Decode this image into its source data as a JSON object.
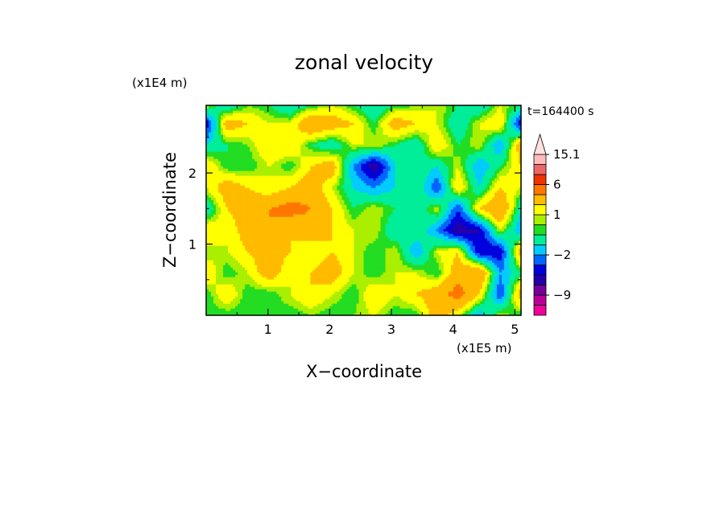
{
  "chart_data": {
    "type": "heatmap",
    "title": "zonal velocity",
    "xlabel": "X−coordinate",
    "ylabel": "Z−coordinate",
    "x_scale_label": "(x1E5 m)",
    "y_scale_label": "(x1E4 m)",
    "time_label": "t=164400 s",
    "xlim": [
      0,
      5.1
    ],
    "ylim": [
      0,
      2.95
    ],
    "x_ticks": [
      1,
      2,
      3,
      4,
      5
    ],
    "y_ticks": [
      1,
      2
    ],
    "colorbar": {
      "labels": [
        {
          "text": "15.1",
          "value": 15.1
        },
        {
          "text": "6",
          "value": 6
        },
        {
          "text": "1",
          "value": 1
        },
        {
          "text": "−2",
          "value": -2
        },
        {
          "text": "−9",
          "value": -9
        }
      ],
      "levels": [
        {
          "lo": null,
          "hi": -12,
          "color": "#ee0099"
        },
        {
          "lo": -12,
          "hi": -9,
          "color": "#bb0099"
        },
        {
          "lo": -9,
          "hi": -6,
          "color": "#770099"
        },
        {
          "lo": -6,
          "hi": -4,
          "color": "#2200aa"
        },
        {
          "lo": -4,
          "hi": -3,
          "color": "#0000dd"
        },
        {
          "lo": -3,
          "hi": -2,
          "color": "#0066ff"
        },
        {
          "lo": -2,
          "hi": -1,
          "color": "#00ccff"
        },
        {
          "lo": -1,
          "hi": 0,
          "color": "#00ee99"
        },
        {
          "lo": 0,
          "hi": 0.5,
          "color": "#22dd22"
        },
        {
          "lo": 0.5,
          "hi": 1,
          "color": "#aaee00"
        },
        {
          "lo": 1,
          "hi": 2,
          "color": "#ffff00"
        },
        {
          "lo": 2,
          "hi": 4,
          "color": "#ffbb00"
        },
        {
          "lo": 4,
          "hi": 6,
          "color": "#ff7700"
        },
        {
          "lo": 6,
          "hi": 8,
          "color": "#ee3300"
        },
        {
          "lo": 8,
          "hi": 12,
          "color": "#ee6666"
        },
        {
          "lo": 12,
          "hi": 15.1,
          "color": "#ffbbbb"
        },
        {
          "lo": 15.1,
          "hi": null,
          "color": "#ffe0e0"
        }
      ]
    },
    "field_grid": {
      "x_values": [
        0.0,
        0.34,
        0.68,
        1.02,
        1.36,
        1.7,
        2.04,
        2.38,
        2.72,
        3.06,
        3.4,
        3.74,
        4.08,
        4.42,
        4.76,
        5.1
      ],
      "y_values": [
        0.0,
        0.3,
        0.6,
        0.9,
        1.2,
        1.5,
        1.8,
        2.1,
        2.4,
        2.7,
        2.95
      ],
      "values": [
        [
          0,
          0,
          0,
          0.5,
          0,
          0.5,
          0,
          0.5,
          1,
          0,
          0,
          3,
          1,
          -2,
          1,
          0
        ],
        [
          0,
          2,
          0,
          0,
          1,
          2,
          1,
          0,
          2,
          1,
          2,
          3,
          5,
          2,
          -3,
          3
        ],
        [
          2,
          0,
          1,
          3,
          1,
          2,
          3,
          1,
          0,
          1,
          1,
          0,
          3,
          4,
          -2,
          0
        ],
        [
          0.5,
          1,
          2,
          3,
          2,
          1,
          2,
          1,
          0,
          1,
          -2,
          1,
          2,
          -4,
          -4,
          3
        ],
        [
          2,
          1,
          3,
          4,
          2,
          3,
          2,
          1,
          1,
          -1,
          0,
          -2,
          -5,
          -4,
          1,
          -2
        ],
        [
          -1,
          2,
          3,
          4,
          5,
          4,
          2,
          0,
          1,
          0,
          -1,
          1,
          -3,
          2,
          4,
          -1
        ],
        [
          1,
          3,
          2,
          1,
          2,
          3,
          1,
          -1,
          -2,
          -1,
          0,
          -3,
          2,
          -1,
          2,
          1
        ],
        [
          2,
          0,
          0,
          1,
          0,
          2,
          3,
          -2,
          -5,
          -1,
          0,
          -1,
          1,
          -2,
          0,
          2
        ],
        [
          -1,
          0,
          0.5,
          2,
          2,
          0,
          -1,
          1,
          1,
          0,
          -1,
          2,
          0,
          1,
          -2,
          3
        ],
        [
          -4,
          3,
          2,
          1,
          1,
          4,
          3,
          2,
          0,
          3,
          2,
          1,
          -1,
          1,
          2,
          -4
        ],
        [
          1,
          -1,
          0.5,
          0,
          -1,
          0,
          1,
          0,
          -1,
          0,
          0.5,
          1,
          0,
          -1,
          1,
          0
        ]
      ]
    }
  }
}
